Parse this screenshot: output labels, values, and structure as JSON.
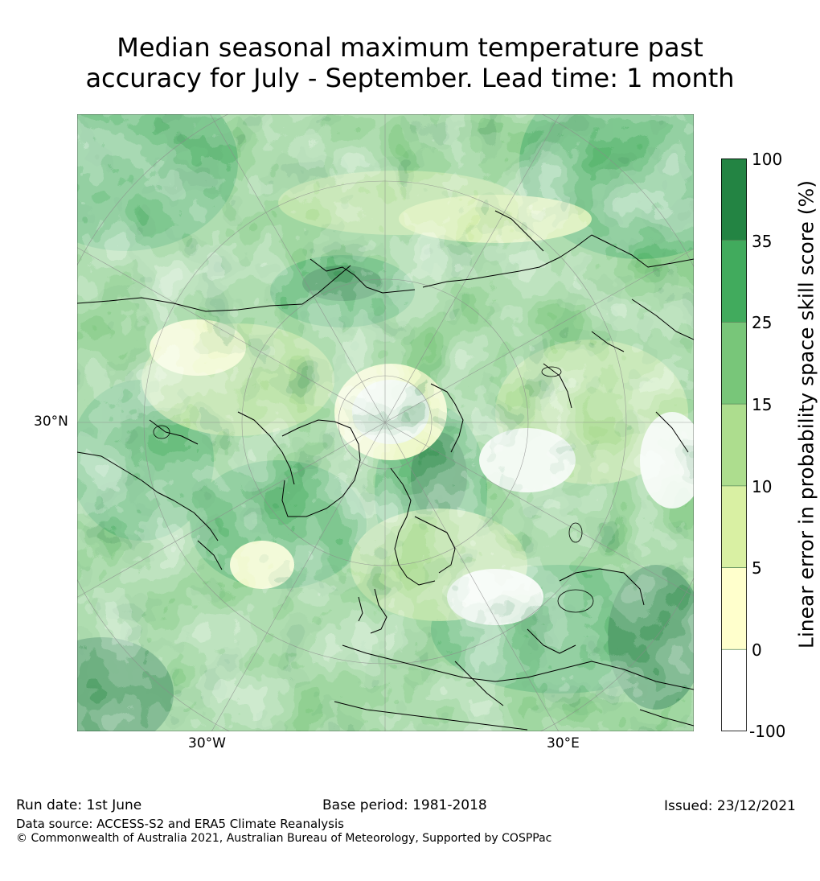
{
  "title": {
    "line1": "Median seasonal maximum temperature past",
    "line2": "accuracy for July - September. Lead time: 1 month"
  },
  "map": {
    "projection": "north-polar-stereographic",
    "latitude_labels": [
      "30°N"
    ],
    "longitude_labels": [
      "30°W",
      "30°E"
    ],
    "land_outline_color": "#000000",
    "graticule_color": "#9a9a9a"
  },
  "colorbar": {
    "label": "Linear error in probability space skill score (%)",
    "ticks": [
      "100",
      "35",
      "25",
      "15",
      "10",
      "5",
      "0",
      "-100"
    ],
    "bins": [
      {
        "from": 35,
        "to": 100,
        "color": "#238443"
      },
      {
        "from": 25,
        "to": 35,
        "color": "#41ab5d"
      },
      {
        "from": 15,
        "to": 25,
        "color": "#78c679"
      },
      {
        "from": 10,
        "to": 15,
        "color": "#addd8e"
      },
      {
        "from": 5,
        "to": 10,
        "color": "#d9f0a3"
      },
      {
        "from": 0,
        "to": 5,
        "color": "#ffffcc"
      },
      {
        "from": -100,
        "to": 0,
        "color": "#ffffff"
      }
    ]
  },
  "footer": {
    "run_date": "Run date: 1st June",
    "base_period": "Base period: 1981-2018",
    "issued": "Issued: 23/12/2021",
    "data_source": "Data source: ACCESS-S2 and ERA5 Climate Reanalysis",
    "copyright": "© Commonwealth of Australia 2021, Australian Bureau of Meteorology, Supported by COSPPac"
  }
}
